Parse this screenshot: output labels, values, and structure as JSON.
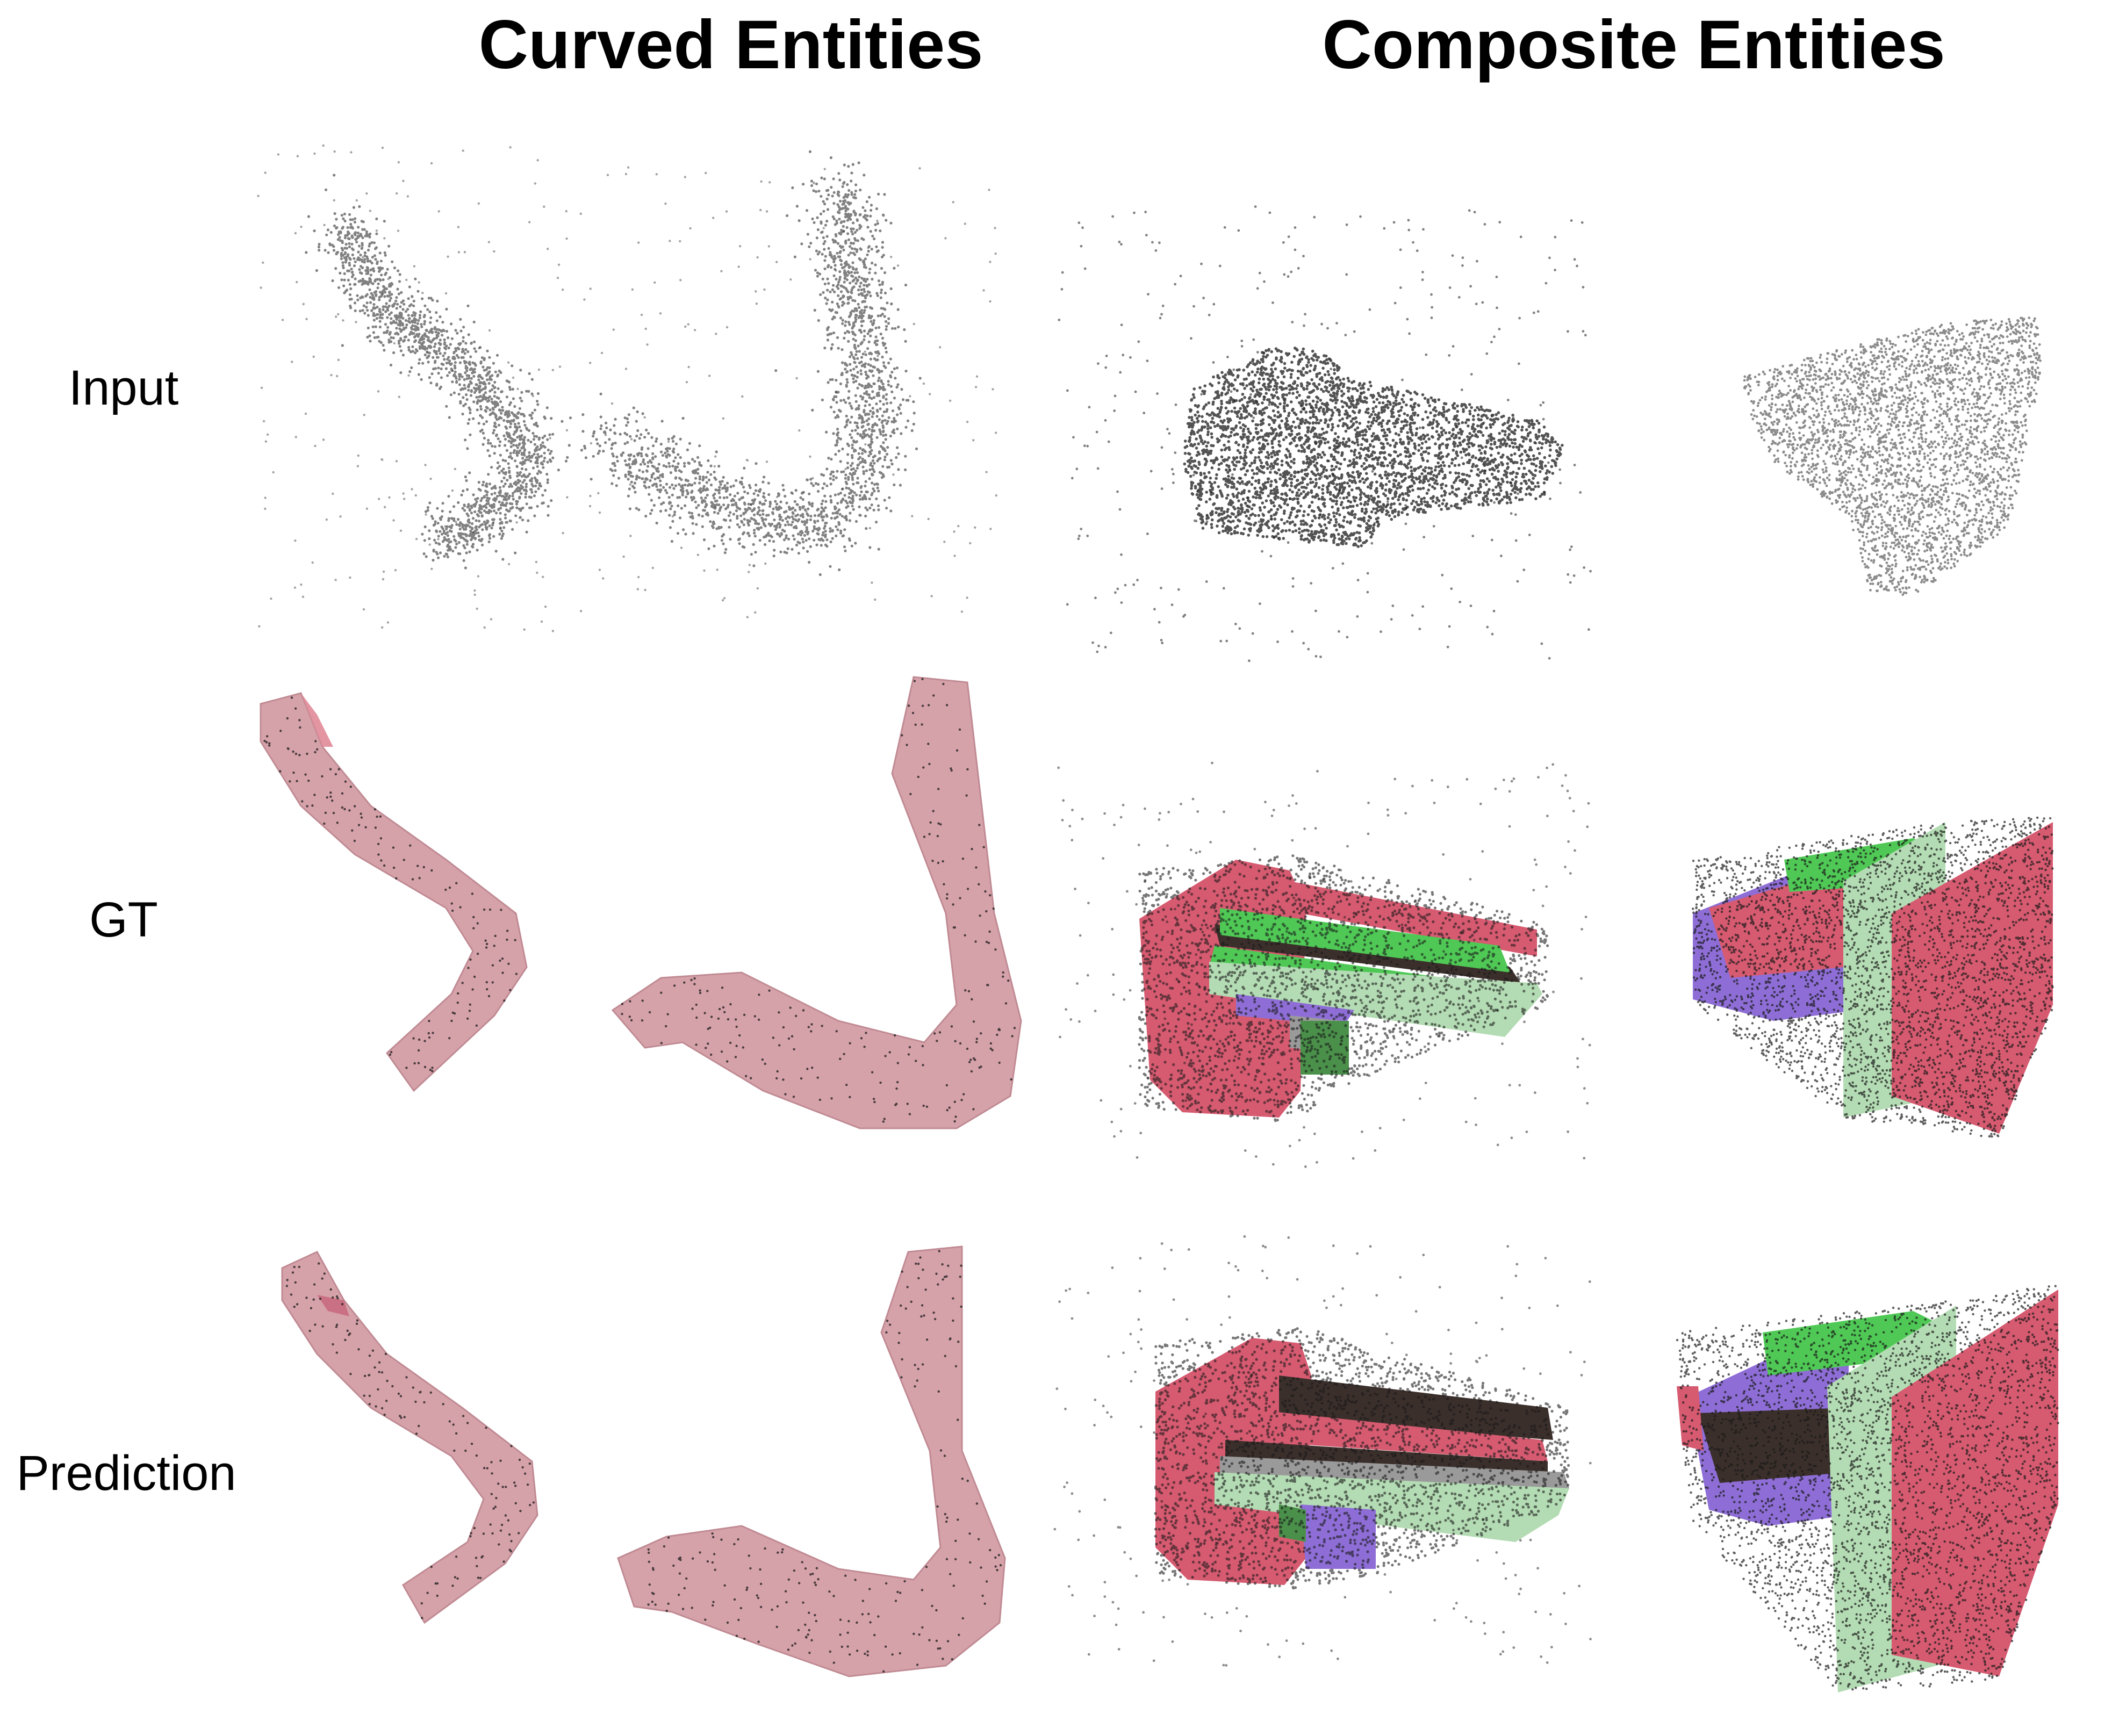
{
  "columns": {
    "curved": "Curved Entities",
    "composite": "Composite Entities"
  },
  "rows": {
    "input": "Input",
    "gt": "GT",
    "prediction": "Prediction"
  },
  "colors": {
    "tube": "#d29aa3",
    "tube_edge": "#c08a93",
    "red": "#d65a70",
    "green": "#4fc855",
    "purple": "#8e6ed6",
    "mint": "#b4dcb4",
    "dark": "#3b2f2b",
    "olive": "#4a8f4a",
    "gray": "#9a9a9a",
    "points": "#1a1a1a"
  }
}
